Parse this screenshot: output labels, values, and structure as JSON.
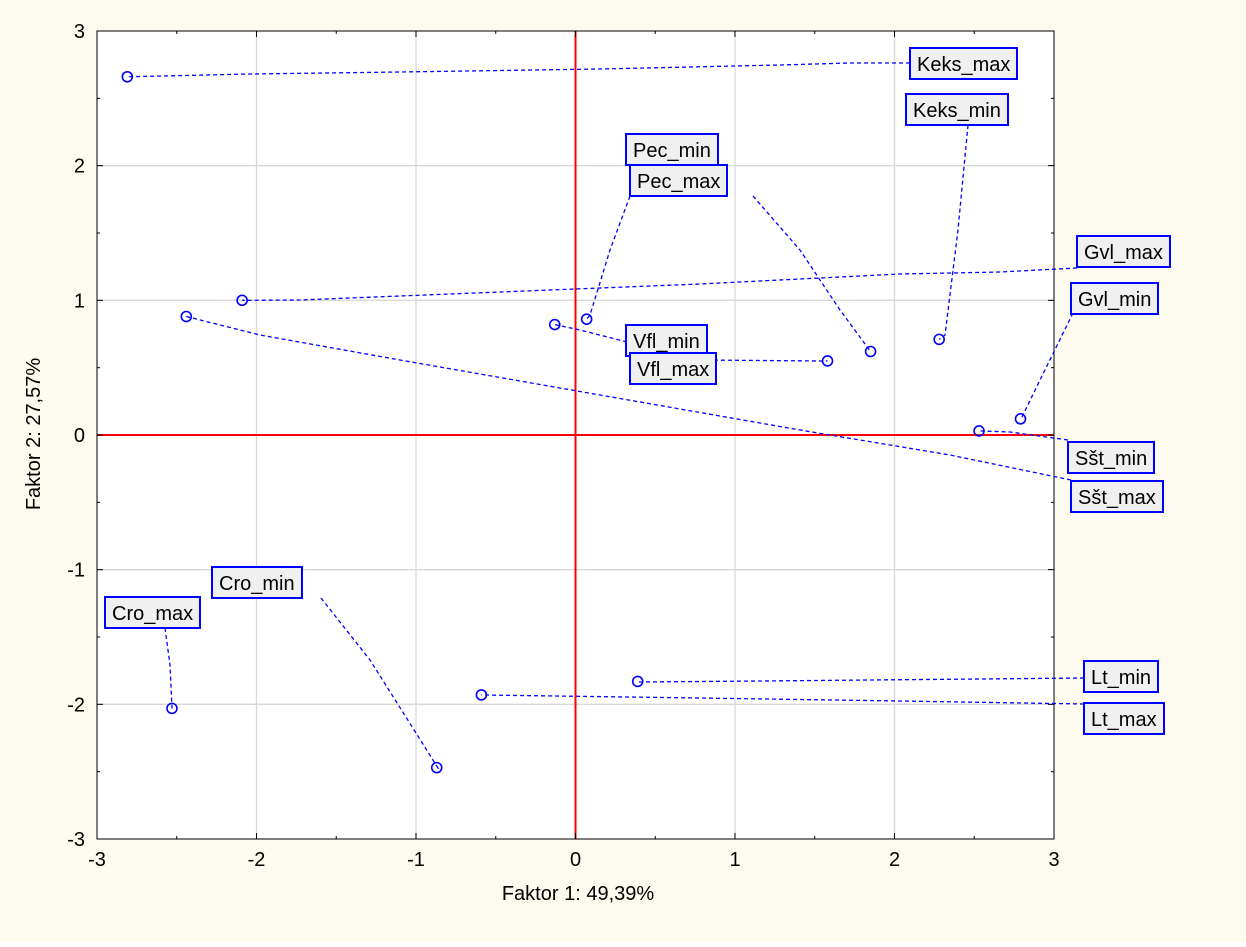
{
  "chart_data": {
    "type": "scatter",
    "title": "",
    "xlabel": "Faktor 1: 49,39%",
    "ylabel": "Faktor 2: 27,57%",
    "xlim": [
      -3,
      3
    ],
    "ylim": [
      -3,
      3
    ],
    "x_ticks": [
      -3,
      -2,
      -1,
      0,
      1,
      2,
      3
    ],
    "y_ticks": [
      -3,
      -2,
      -1,
      0,
      1,
      2,
      3
    ],
    "x_tick_labels": [
      "-3",
      "-2",
      "-1",
      "0",
      "1",
      "2",
      "3"
    ],
    "y_tick_labels": [
      "-3",
      "-2",
      "-1",
      "0",
      "1",
      "2",
      "3"
    ],
    "grid": true,
    "points": [
      {
        "label": "Keks_max",
        "x": -2.81,
        "y": 2.66
      },
      {
        "label": "Keks_min",
        "x": 2.28,
        "y": 0.71
      },
      {
        "label": "Pec_min",
        "x": 0.07,
        "y": 0.86
      },
      {
        "label": "Pec_max",
        "x": 1.85,
        "y": 0.62
      },
      {
        "label": "Gvl_max",
        "x": -2.09,
        "y": 1.0
      },
      {
        "label": "Gvl_min",
        "x": 2.79,
        "y": 0.12
      },
      {
        "label": "Vfl_min",
        "x": -0.13,
        "y": 0.82
      },
      {
        "label": "Vfl_max",
        "x": 1.58,
        "y": 0.55
      },
      {
        "label": "Sšt_min",
        "x": 2.53,
        "y": 0.03
      },
      {
        "label": "Sšt_max",
        "x": -2.44,
        "y": 0.88
      },
      {
        "label": "Cro_min",
        "x": -0.87,
        "y": -2.47
      },
      {
        "label": "Cro_max",
        "x": -2.53,
        "y": -2.03
      },
      {
        "label": "Lt_min",
        "x": 0.39,
        "y": -1.83
      },
      {
        "label": "Lt_max",
        "x": -0.59,
        "y": -1.93
      }
    ]
  },
  "colors": {
    "frame_background": "#fdfaf0",
    "plot_background": "#ffffff",
    "grid": "#d8d8d8",
    "axis_line": "#ff0000",
    "marker": "#0000ff",
    "leader_line": "#0000ff",
    "label_border": "#0000ff",
    "label_fill": "#f0f0f0"
  }
}
